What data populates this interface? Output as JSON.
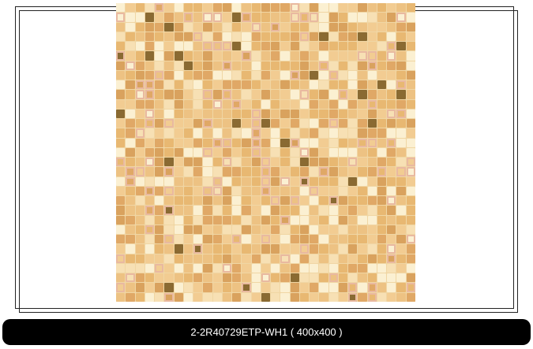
{
  "product": {
    "caption": "2-2R40729ETP-WH1 ( 400x400 )",
    "image_alt": "beige mosaic tile"
  },
  "colors": {
    "caption_bg": "#000000",
    "caption_text": "#ffffff",
    "tile_palette": [
      "#e8b872",
      "#f2cc92",
      "#f7e0b4",
      "#fbf0d2",
      "#e0a866",
      "#edc283",
      "#d9a25e"
    ]
  }
}
